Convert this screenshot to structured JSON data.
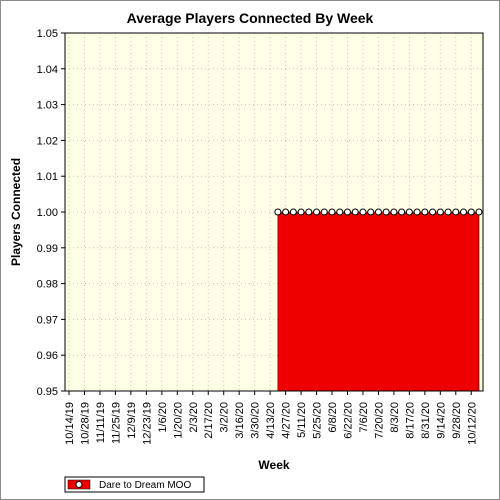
{
  "chart_data": {
    "type": "area",
    "title": "Average Players Connected By Week",
    "xlabel": "Week",
    "ylabel": "Players Connected",
    "ylim": [
      0.95,
      1.05
    ],
    "yticks": [
      "0.95",
      "0.96",
      "0.97",
      "0.98",
      "0.99",
      "1.00",
      "1.01",
      "1.02",
      "1.03",
      "1.04",
      "1.05"
    ],
    "x": [
      "10/14/19",
      "10/28/19",
      "11/11/19",
      "11/25/19",
      "12/9/19",
      "12/23/19",
      "1/6/20",
      "1/20/20",
      "2/3/20",
      "2/17/20",
      "3/2/20",
      "3/16/20",
      "3/30/20",
      "4/13/20",
      "4/27/20",
      "5/11/20",
      "5/25/20",
      "6/8/20",
      "6/22/20",
      "7/6/20",
      "7/20/20",
      "8/3/20",
      "8/17/20",
      "8/31/20",
      "9/14/20",
      "9/28/20",
      "10/12/20"
    ],
    "series": [
      {
        "name": "Dare to Dream MOO",
        "color": "#ee0000",
        "points": [
          [
            "4/20/20",
            1.0
          ],
          [
            "4/27/20",
            1.0
          ],
          [
            "5/4/20",
            1.0
          ],
          [
            "5/11/20",
            1.0
          ],
          [
            "5/18/20",
            1.0
          ],
          [
            "5/25/20",
            1.0
          ],
          [
            "6/1/20",
            1.0
          ],
          [
            "6/8/20",
            1.0
          ],
          [
            "6/15/20",
            1.0
          ],
          [
            "6/22/20",
            1.0
          ],
          [
            "6/29/20",
            1.0
          ],
          [
            "7/6/20",
            1.0
          ],
          [
            "7/13/20",
            1.0
          ],
          [
            "7/20/20",
            1.0
          ],
          [
            "7/27/20",
            1.0
          ],
          [
            "8/3/20",
            1.0
          ],
          [
            "8/10/20",
            1.0
          ],
          [
            "8/17/20",
            1.0
          ],
          [
            "8/24/20",
            1.0
          ],
          [
            "8/31/20",
            1.0
          ],
          [
            "9/7/20",
            1.0
          ],
          [
            "9/14/20",
            1.0
          ],
          [
            "9/21/20",
            1.0
          ],
          [
            "9/28/20",
            1.0
          ],
          [
            "10/5/20",
            1.0
          ],
          [
            "10/12/20",
            1.0
          ],
          [
            "10/19/20",
            1.0
          ]
        ]
      }
    ],
    "grid": true,
    "legend": "bottom-left"
  }
}
